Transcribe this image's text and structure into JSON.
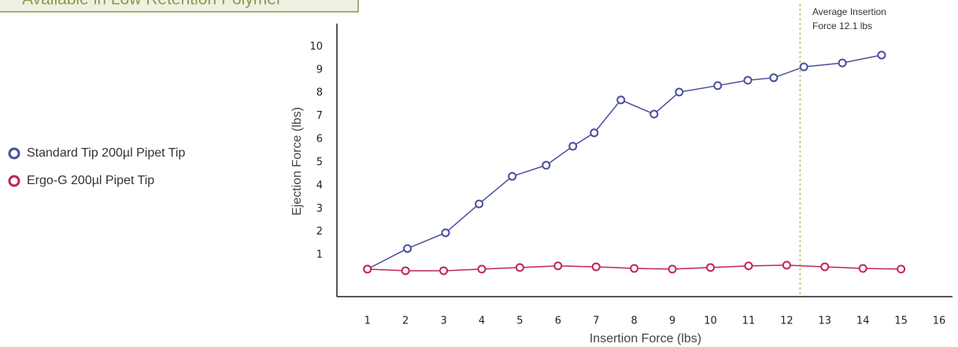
{
  "banner": "Available in Low Retention Polymer",
  "chart_data": {
    "type": "line",
    "xlabel": "Insertion Force (lbs)",
    "ylabel": "Ejection Force (lbs)",
    "xlim": [
      0.2,
      16.35
    ],
    "ylim": [
      -0.8,
      11
    ],
    "xticks": [
      1,
      2,
      3,
      4,
      5,
      6,
      7,
      8,
      9,
      10,
      11,
      12,
      13,
      14,
      15,
      16
    ],
    "yticks": [
      1,
      2,
      3,
      4,
      5,
      6,
      7,
      8,
      9,
      10
    ],
    "annotation": {
      "lines": [
        "Average Insertion",
        "Force 12.1 lbs"
      ],
      "x": 12.35
    },
    "series": [
      {
        "name": "Standard Tip 200µl Pipet Tip",
        "color": "#4a4f9a",
        "x": [
          1,
          2.05,
          3.05,
          3.93,
          4.8,
          5.69,
          6.39,
          6.95,
          7.65,
          8.52,
          9.18,
          10.19,
          10.98,
          11.66,
          12.45,
          13.46,
          14.49
        ],
        "values": [
          0.39,
          1.28,
          1.96,
          3.21,
          4.4,
          4.88,
          5.7,
          6.28,
          7.7,
          7.09,
          8.04,
          8.32,
          8.55,
          8.66,
          9.13,
          9.3,
          9.64
        ]
      },
      {
        "name": "Ergo-G 200µl Pipet Tip",
        "color": "#c0245a",
        "x": [
          1,
          2,
          3,
          4,
          5,
          6,
          7,
          8,
          9,
          10,
          11,
          12,
          13,
          14,
          15
        ],
        "values": [
          0.39,
          0.32,
          0.32,
          0.39,
          0.46,
          0.53,
          0.49,
          0.42,
          0.39,
          0.46,
          0.53,
          0.56,
          0.49,
          0.42,
          0.39
        ]
      }
    ]
  }
}
